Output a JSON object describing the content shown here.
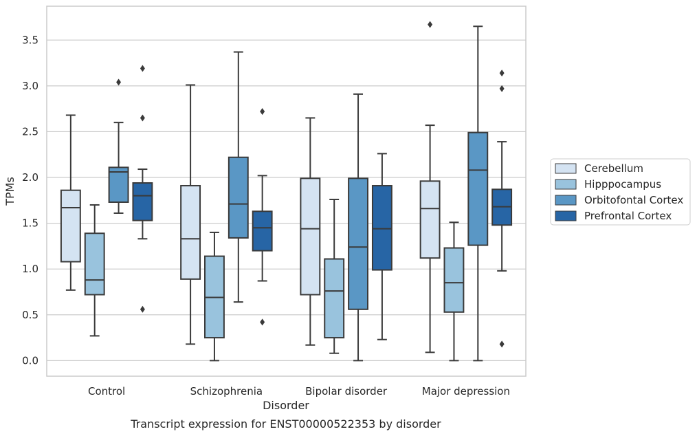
{
  "chart_data": {
    "type": "box",
    "caption": "Transcript expression for ENST00000522353 by disorder",
    "xlabel": "Disorder",
    "ylabel": "TPMs",
    "ylim": [
      -0.17,
      3.87
    ],
    "yticks": [
      0.0,
      0.5,
      1.0,
      1.5,
      2.0,
      2.5,
      3.0,
      3.5
    ],
    "ytick_labels": [
      "0.0",
      "0.5",
      "1.0",
      "1.5",
      "2.0",
      "2.5",
      "3.0",
      "3.5"
    ],
    "grid": "horizontal",
    "legend_position": "right",
    "categories": [
      "Control",
      "Schizophrenia",
      "Bipolar disorder",
      "Major depression"
    ],
    "series": [
      {
        "name": "Cerebellum",
        "color": "#d4e3f2",
        "boxes": [
          {
            "whisker_low": 0.77,
            "q1": 1.08,
            "median": 1.67,
            "q3": 1.86,
            "whisker_high": 2.68,
            "outliers": []
          },
          {
            "whisker_low": 0.18,
            "q1": 0.89,
            "median": 1.33,
            "q3": 1.91,
            "whisker_high": 3.01,
            "outliers": []
          },
          {
            "whisker_low": 0.17,
            "q1": 0.72,
            "median": 1.44,
            "q3": 1.99,
            "whisker_high": 2.65,
            "outliers": []
          },
          {
            "whisker_low": 0.09,
            "q1": 1.12,
            "median": 1.66,
            "q3": 1.96,
            "whisker_high": 2.57,
            "outliers": [
              3.67
            ]
          }
        ]
      },
      {
        "name": "Hipppocampus",
        "color": "#99c3dd",
        "boxes": [
          {
            "whisker_low": 0.27,
            "q1": 0.72,
            "median": 0.88,
            "q3": 1.39,
            "whisker_high": 1.7,
            "outliers": []
          },
          {
            "whisker_low": 0.0,
            "q1": 0.25,
            "median": 0.69,
            "q3": 1.14,
            "whisker_high": 1.4,
            "outliers": []
          },
          {
            "whisker_low": 0.08,
            "q1": 0.25,
            "median": 0.76,
            "q3": 1.11,
            "whisker_high": 1.76,
            "outliers": []
          },
          {
            "whisker_low": 0.0,
            "q1": 0.53,
            "median": 0.85,
            "q3": 1.23,
            "whisker_high": 1.51,
            "outliers": []
          }
        ]
      },
      {
        "name": "Orbitofontal Cortex",
        "color": "#5a97c5",
        "boxes": [
          {
            "whisker_low": 1.61,
            "q1": 1.73,
            "median": 2.06,
            "q3": 2.11,
            "whisker_high": 2.6,
            "outliers": [
              3.04
            ]
          },
          {
            "whisker_low": 0.64,
            "q1": 1.34,
            "median": 1.71,
            "q3": 2.22,
            "whisker_high": 3.37,
            "outliers": []
          },
          {
            "whisker_low": 0.0,
            "q1": 0.56,
            "median": 1.24,
            "q3": 1.99,
            "whisker_high": 2.91,
            "outliers": []
          },
          {
            "whisker_low": 0.0,
            "q1": 1.26,
            "median": 2.08,
            "q3": 2.49,
            "whisker_high": 3.65,
            "outliers": []
          }
        ]
      },
      {
        "name": "Prefrontal Cortex",
        "color": "#2765a5",
        "boxes": [
          {
            "whisker_low": 1.33,
            "q1": 1.53,
            "median": 1.8,
            "q3": 1.94,
            "whisker_high": 2.09,
            "outliers": [
              3.19,
              2.65,
              0.56
            ]
          },
          {
            "whisker_low": 0.87,
            "q1": 1.2,
            "median": 1.45,
            "q3": 1.63,
            "whisker_high": 2.02,
            "outliers": [
              2.72,
              0.42
            ]
          },
          {
            "whisker_low": 0.23,
            "q1": 0.99,
            "median": 1.44,
            "q3": 1.91,
            "whisker_high": 2.26,
            "outliers": []
          },
          {
            "whisker_low": 0.98,
            "q1": 1.48,
            "median": 1.68,
            "q3": 1.87,
            "whisker_high": 2.39,
            "outliers": [
              3.14,
              2.97,
              0.18
            ]
          }
        ]
      }
    ]
  }
}
